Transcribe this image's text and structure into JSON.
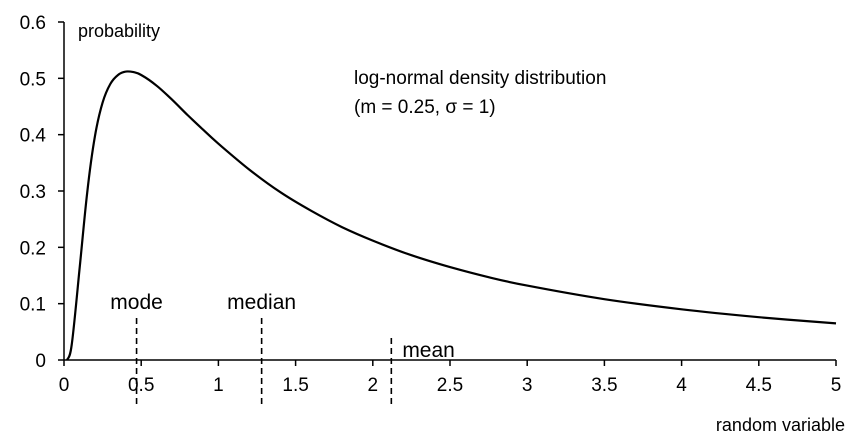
{
  "chart_data": {
    "type": "line",
    "title": "log-normal density distribution",
    "subtitle": "(m = 0.25, σ = 1)",
    "xlabel": "random variable",
    "ylabel": "probability",
    "xlim": [
      0,
      5
    ],
    "ylim": [
      0,
      0.6
    ],
    "x_ticks": [
      {
        "value": 0,
        "label": "0"
      },
      {
        "value": 0.5,
        "label": "0.5"
      },
      {
        "value": 1,
        "label": "1"
      },
      {
        "value": 1.5,
        "label": "1.5"
      },
      {
        "value": 2,
        "label": "2"
      },
      {
        "value": 2.5,
        "label": "2.5"
      },
      {
        "value": 3,
        "label": "3"
      },
      {
        "value": 3.5,
        "label": "3.5"
      },
      {
        "value": 4,
        "label": "4"
      },
      {
        "value": 4.5,
        "label": "4.5"
      },
      {
        "value": 5,
        "label": "5"
      }
    ],
    "y_ticks": [
      {
        "value": 0,
        "label": "0"
      },
      {
        "value": 0.1,
        "label": "0.1"
      },
      {
        "value": 0.2,
        "label": "0.2"
      },
      {
        "value": 0.3,
        "label": "0.3"
      },
      {
        "value": 0.4,
        "label": "0.4"
      },
      {
        "value": 0.5,
        "label": "0.5"
      },
      {
        "value": 0.6,
        "label": "0.6"
      }
    ],
    "grid": false,
    "series": [
      {
        "line_color": "#000000",
        "x": [
          0.02,
          0.05,
          0.1,
          0.15,
          0.2,
          0.25,
          0.3,
          0.35,
          0.4,
          0.45,
          0.5,
          0.6,
          0.7,
          0.8,
          0.9,
          1.0,
          1.2,
          1.4,
          1.6,
          1.8,
          2.0,
          2.25,
          2.5,
          2.75,
          3.0,
          3.5,
          4.0,
          4.5,
          5.0
        ],
        "y": [
          0.0,
          0.027,
          0.159,
          0.297,
          0.397,
          0.457,
          0.49,
          0.506,
          0.512,
          0.511,
          0.506,
          0.487,
          0.462,
          0.435,
          0.409,
          0.384,
          0.338,
          0.298,
          0.265,
          0.236,
          0.212,
          0.186,
          0.165,
          0.147,
          0.132,
          0.108,
          0.09,
          0.076,
          0.065
        ]
      }
    ],
    "markers": [
      {
        "label": "mode",
        "x": 0.47,
        "label_position": "above"
      },
      {
        "label": "median",
        "x": 1.28,
        "label_position": "above"
      },
      {
        "label": "mean",
        "x": 2.12,
        "label_position": "right"
      }
    ]
  }
}
